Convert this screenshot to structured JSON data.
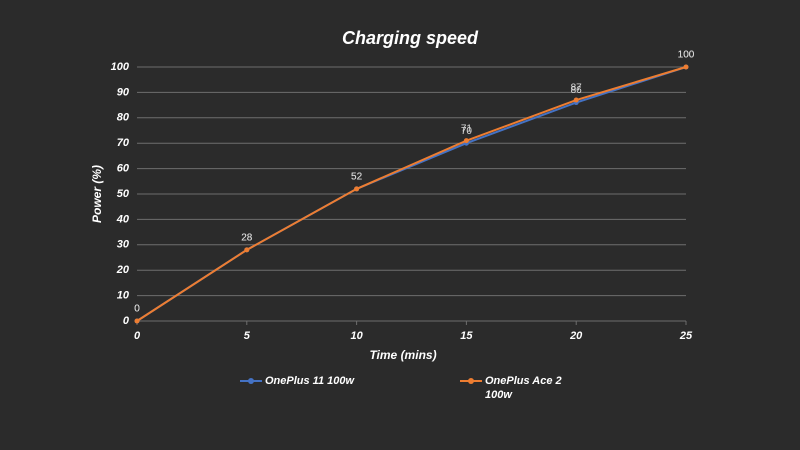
{
  "chart_data": {
    "type": "line",
    "title": "Charging speed",
    "x_label": "Time (mins)",
    "y_label": "Power (%)",
    "x": [
      0,
      5,
      10,
      15,
      20,
      25
    ],
    "series": [
      {
        "name": "OnePlus 11 100w",
        "color": "#4472c4",
        "values": [
          0,
          28,
          52,
          70,
          86,
          100
        ]
      },
      {
        "name": "OnePlus Ace 2 100w",
        "color": "#ed7d31",
        "values": [
          0,
          28,
          52,
          71,
          87,
          100
        ]
      }
    ],
    "xlim": [
      0,
      25
    ],
    "xticks": [
      0,
      5,
      10,
      15,
      20,
      25
    ],
    "ylim": [
      0,
      100
    ],
    "yticks": [
      0,
      10,
      20,
      30,
      40,
      50,
      60,
      70,
      80,
      90,
      100
    ],
    "grid": true,
    "legend": "bottom"
  }
}
